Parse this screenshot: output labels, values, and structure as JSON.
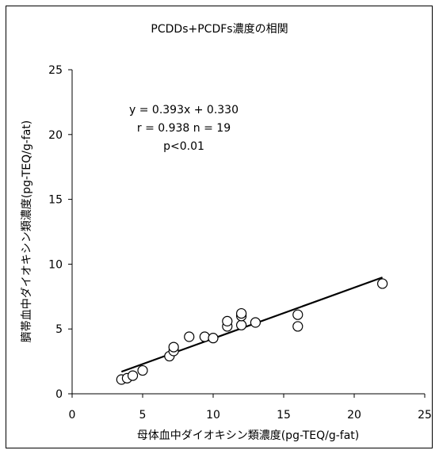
{
  "chart_data": {
    "type": "scatter",
    "title": "PCDDs+PCDFs濃度の相関",
    "xlabel": "母体血中ダイオキシン類濃度(pg-TEQ/g-fat)",
    "ylabel": "臍帯血中ダイオキシン類濃度(pg-TEQ/g-fat)",
    "xlim": [
      0,
      25
    ],
    "ylim": [
      0,
      25
    ],
    "x_ticks": [
      0,
      5,
      10,
      15,
      20,
      25
    ],
    "y_ticks": [
      0,
      5,
      10,
      15,
      20,
      25
    ],
    "grid": false,
    "legend": "none",
    "points": [
      {
        "x": 3.5,
        "y": 1.1
      },
      {
        "x": 3.9,
        "y": 1.2
      },
      {
        "x": 4.3,
        "y": 1.4
      },
      {
        "x": 5.0,
        "y": 1.8
      },
      {
        "x": 6.9,
        "y": 2.9
      },
      {
        "x": 7.2,
        "y": 3.3
      },
      {
        "x": 7.2,
        "y": 3.6
      },
      {
        "x": 8.3,
        "y": 4.4
      },
      {
        "x": 9.4,
        "y": 4.4
      },
      {
        "x": 10.0,
        "y": 4.3
      },
      {
        "x": 11.0,
        "y": 5.2
      },
      {
        "x": 11.0,
        "y": 5.6
      },
      {
        "x": 12.0,
        "y": 5.3
      },
      {
        "x": 12.0,
        "y": 6.0
      },
      {
        "x": 12.0,
        "y": 6.2
      },
      {
        "x": 13.0,
        "y": 5.5
      },
      {
        "x": 16.0,
        "y": 5.2
      },
      {
        "x": 16.0,
        "y": 6.1
      },
      {
        "x": 22.0,
        "y": 8.5
      }
    ],
    "regression": {
      "slope": 0.393,
      "intercept": 0.33,
      "x_range": [
        3.5,
        22.0
      ]
    },
    "annotations": [
      "y = 0.393x + 0.330",
      "r = 0.938  n = 19",
      "p<0.01"
    ]
  }
}
